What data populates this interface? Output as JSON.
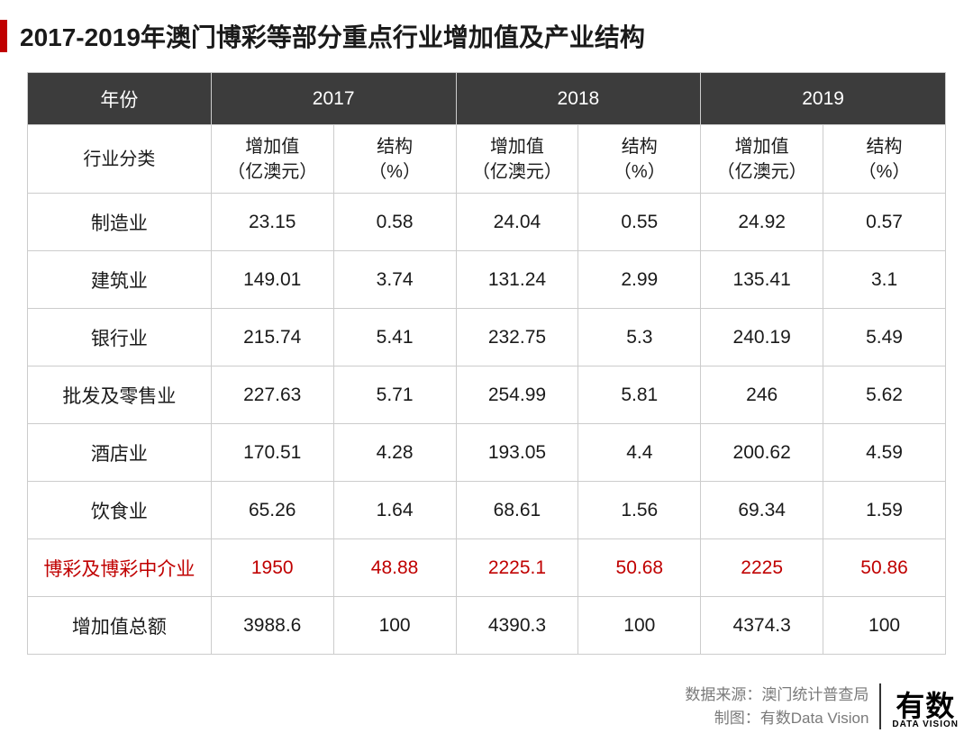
{
  "title": "2017-2019年澳门博彩等部分重点行业增加值及产业结构",
  "table": {
    "header_row1": {
      "col0": "年份",
      "years": [
        "2017",
        "2018",
        "2019"
      ]
    },
    "header_row2": {
      "col0": "行业分类",
      "sub_value": "增加值\n（亿澳元）",
      "sub_pct": "结构\n（%）"
    },
    "rows": [
      {
        "label": "制造业",
        "v17": "23.15",
        "p17": "0.58",
        "v18": "24.04",
        "p18": "0.55",
        "v19": "24.92",
        "p19": "0.57",
        "highlight": false
      },
      {
        "label": "建筑业",
        "v17": "149.01",
        "p17": "3.74",
        "v18": "131.24",
        "p18": "2.99",
        "v19": "135.41",
        "p19": "3.1",
        "highlight": false
      },
      {
        "label": "银行业",
        "v17": "215.74",
        "p17": "5.41",
        "v18": "232.75",
        "p18": "5.3",
        "v19": "240.19",
        "p19": "5.49",
        "highlight": false
      },
      {
        "label": "批发及零售业",
        "v17": "227.63",
        "p17": "5.71",
        "v18": "254.99",
        "p18": "5.81",
        "v19": "246",
        "p19": "5.62",
        "highlight": false
      },
      {
        "label": "酒店业",
        "v17": "170.51",
        "p17": "4.28",
        "v18": "193.05",
        "p18": "4.4",
        "v19": "200.62",
        "p19": "4.59",
        "highlight": false
      },
      {
        "label": "饮食业",
        "v17": "65.26",
        "p17": "1.64",
        "v18": "68.61",
        "p18": "1.56",
        "v19": "69.34",
        "p19": "1.59",
        "highlight": false
      },
      {
        "label": "博彩及博彩中介业",
        "v17": "1950",
        "p17": "48.88",
        "v18": "2225.1",
        "p18": "50.68",
        "v19": "2225",
        "p19": "50.86",
        "highlight": true
      },
      {
        "label": "增加值总额",
        "v17": "3988.6",
        "p17": "100",
        "v18": "4390.3",
        "p18": "100",
        "v19": "4374.3",
        "p19": "100",
        "highlight": false
      }
    ]
  },
  "footer": {
    "source_label": "数据来源：澳门统计普查局",
    "credit_label": "制图：有数Data Vision",
    "logo_main": "有数",
    "logo_sub": "DATA VISION"
  },
  "colors": {
    "accent": "#c00000",
    "header_bg": "#3c3c3c",
    "border": "#cccccc",
    "text": "#1a1a1a",
    "footer_text": "#7a7a7a"
  }
}
